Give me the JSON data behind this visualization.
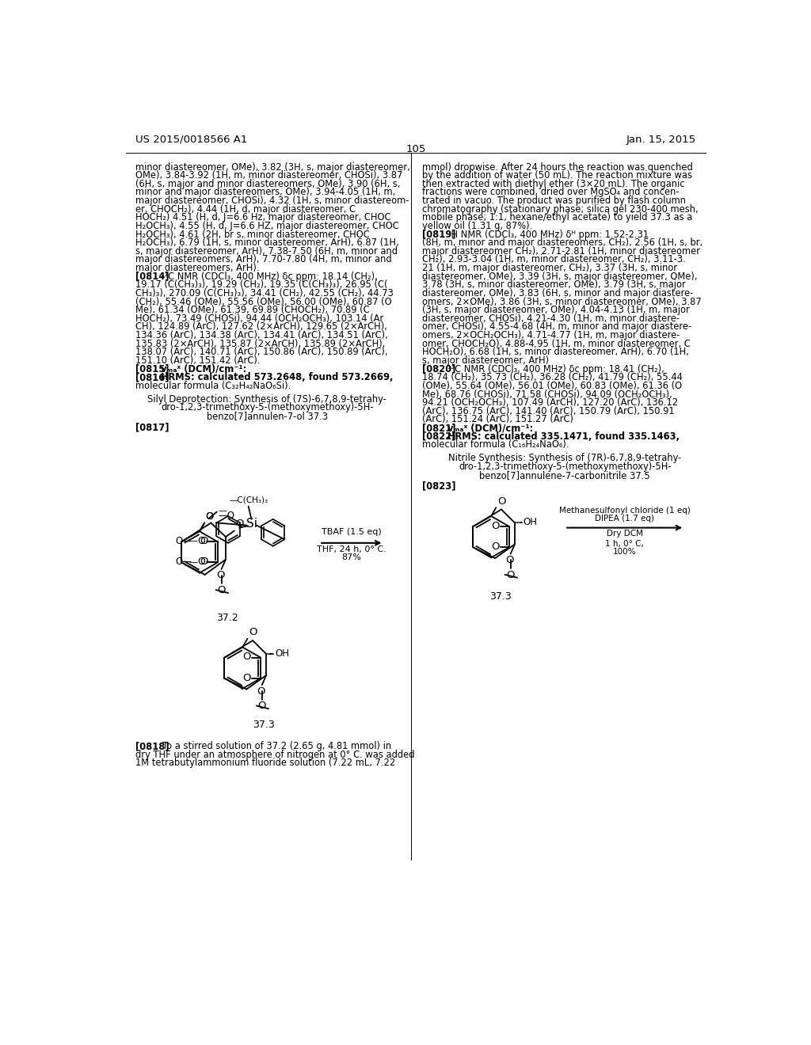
{
  "page_header_left": "US 2015/0018566 A1",
  "page_header_right": "Jan. 15, 2015",
  "page_number": "105",
  "bg": "#ffffff",
  "left_lines": [
    [
      false,
      "minor diastereomer, OMe), 3.82 (3H, s, major diastereomer,"
    ],
    [
      false,
      "OMe), 3.84-3.92 (1H, m, minor diastereomer, CHOSi), 3.87"
    ],
    [
      false,
      "(6H, s, major and minor diastereomers, OMe), 3.90 (6H, s,"
    ],
    [
      false,
      "minor and major diastereomers, OMe), 3.94-4.05 (1H, m,"
    ],
    [
      false,
      "major diastereomer, CHOSi), 4.32 (1H, s, minor diastereom-"
    ],
    [
      false,
      "er, CHOCH₂), 4.44 (1H, d, major diastereomer, C"
    ],
    [
      false,
      "HOCH₂) 4.51 (H, d, J=6.6 Hz, major diastereomer, CHOC"
    ],
    [
      false,
      "H₂OCH₃), 4.55 (H, d, J=6.6 HZ, major diastereomer, CHOC"
    ],
    [
      false,
      "H₂OCH₃), 4.61 (2H, br s, minor diastereomer, CHOC"
    ],
    [
      false,
      "H₂OCH₃), 6.79 (1H, s, minor diastereomer, ArH), 6.87 (1H,"
    ],
    [
      false,
      "s, major diastereomer, ArH), 7.38-7.50 (6H, m, minor and"
    ],
    [
      false,
      "major diastereomers, ArH), 7.70-7.80 (4H, m, minor and"
    ],
    [
      false,
      "major diastereomers, ArH)."
    ],
    [
      "0814",
      "¹³C NMR (CDCl₃, 400 MHz) δᴄ ppm: 18.14 (CH₂),"
    ],
    [
      false,
      "19.17 (C(CH₃)₃), 19.29 (CH₂), 19.35 (C(CH₃)₃), 26.95 (C("
    ],
    [
      false,
      "CH₃)₃), 270.09 (C(CH₃)₃), 34.41 (CH₂), 42.55 (CH₂), 44.73"
    ],
    [
      false,
      "(CH₂), 55.46 (OMe), 55.56 (OMe), 56.00 (OMe), 60.87 (O"
    ],
    [
      false,
      "Me), 61.34 (OMe), 61.39, 69.89 (CHOCH₂), 70.89 (C"
    ],
    [
      false,
      "HOCH₂), 73.49 (CHOSi), 94.44 (OCH₂OCH₃), 103.14 (Ar"
    ],
    [
      false,
      "CH), 124.89 (ArC), 127.62 (2×ArCH), 129.65 (2×ArCH),"
    ],
    [
      false,
      "134.36 (ArC), 134.38 (ArC), 134.41 (ArC), 134.51 (ArC),"
    ],
    [
      false,
      "135.83 (2×ArCH), 135.87 (2×ArCH), 135.89 (2×ArCH),"
    ],
    [
      false,
      "138.07 (ArC), 140.71 (ArC), 150.86 (ArC), 150.89 (ArC),"
    ],
    [
      false,
      "151.10 (ArC), 151.42 (ArC)."
    ],
    [
      "0815",
      "vₘₐˣ (DCM)/cm⁻¹:"
    ],
    [
      "0816",
      "HRMS: calculated 573.2648, found 573.2669,"
    ],
    [
      false,
      "molecular formula (C₃₂H₄₂NaO₆Si)."
    ]
  ],
  "right_lines": [
    [
      false,
      "mmol) dropwise. After 24 hours the reaction was quenched"
    ],
    [
      false,
      "by the addition of water (50 mL). The reaction mixture was"
    ],
    [
      false,
      "then extracted with diethyl ether (3×20 mL). The organic"
    ],
    [
      false,
      "fractions were combined, dried over MgSO₄ and concen-"
    ],
    [
      false,
      "trated in vacuo. The product was purified by flash column"
    ],
    [
      false,
      "chromatography (stationary phase; silica gel 230-400 mesh,"
    ],
    [
      false,
      "mobile phase; 1:1, hexane/ethyl acetate) to yield 37.3 as a"
    ],
    [
      false,
      "yellow oil (1.31 g, 87%)."
    ],
    [
      "0819",
      "¹H NMR (CDCl₃, 400 MHz) δᴴ ppm: 1.52-2.31"
    ],
    [
      false,
      "(8H, m, minor and major diastereomers, CH₂), 2.56 (1H, s, br,"
    ],
    [
      false,
      "major diastereomer CH₂), 2.71-2.81 (1H, minor diastereomer"
    ],
    [
      false,
      "CH₂), 2.93-3.04 (1H, m, minor diastereomer, CH₂), 3.11-3."
    ],
    [
      false,
      "21 (1H, m, major diastereomer, CH₂), 3.37 (3H, s, minor"
    ],
    [
      false,
      "diastereomer, OMe), 3.39 (3H, s, major diastereomer, OMe),"
    ],
    [
      false,
      "3.78 (3H, s, minor diastereomer, OMe), 3.79 (3H, s, major"
    ],
    [
      false,
      "diastereomer, OMe), 3.83 (6H, s, minor and major diastere-"
    ],
    [
      false,
      "omers, 2×OMe), 3.86 (3H, s, minor diastereomer, OMe), 3.87"
    ],
    [
      false,
      "(3H, s, major diastereomer, OMe), 4.04-4.13 (1H, m, major"
    ],
    [
      false,
      "diastereomer, CHOSi), 4.21-4.30 (1H, m, minor diastere-"
    ],
    [
      false,
      "omer, CHOSi), 4.55-4.68 (4H, m, minor and major diastere-"
    ],
    [
      false,
      "omers, 2×OCH₂OCH₃), 4.71-4.77 (1H, m, major diastere-"
    ],
    [
      false,
      "omer, CHOCH₂O), 4.88-4.95 (1H, m, minor diastereomer, C"
    ],
    [
      false,
      "HOCH₂O), 6.68 (1H, s, minor diastereomer, ArH), 6.70 (1H,"
    ],
    [
      false,
      "s, major diastereomer, ArH)"
    ],
    [
      "0820",
      "¹³C NMR (CDCl₃, 400 MHz) δᴄ ppm: 18.41 (CH₂),"
    ],
    [
      false,
      "18.74 (CH₂), 35.73 (CH₂), 36.28 (CH₂), 41.79 (CH₂), 55.44"
    ],
    [
      false,
      "(OMe), 55.64 (OMe), 56.01 (OMe), 60.83 (OMe), 61.36 (O"
    ],
    [
      false,
      "Me), 68.76 (CHOSi), 71.58 (CHOSi), 94.09 (OCH₂OCH₃),"
    ],
    [
      false,
      "94.21 (OCH₂OCH₃), 107.49 (ArCH), 127.20 (ArC), 136.12"
    ],
    [
      false,
      "(ArC), 136.75 (ArC), 141.40 (ArC), 150.79 (ArC), 150.91"
    ],
    [
      false,
      "(ArC), 151.24 (ArC), 151.27 (ArC)"
    ],
    [
      "0821",
      "vₘₐˣ (DCM)/cm⁻¹:"
    ],
    [
      "0822",
      "HRMS: calculated 335.1471, found 335.1463,"
    ],
    [
      false,
      "molecular formula (C₁₆H₂₄NaO₆)."
    ]
  ],
  "title1_lines": [
    "Silyl Deprotection: Synthesis of (7S)-6,7,8,9-tetrahy-",
    "dro-1,2,3-trimethoxy-5-(methoxymethoxy)-5H-",
    "benzo[7]annulen-7-ol 37.3"
  ],
  "title2_lines": [
    "Nitrile Synthesis: Synthesis of (7R)-6,7,8,9-tetrahy-",
    "dro-1,2,3-trimethoxy-5-(methoxymethoxy)-5H-",
    "benzo[7]annulene-7-carbonitrile 37.5"
  ],
  "bottom_lines": [
    [
      "0818",
      "To a stirred solution of 37.2 (2.65 g, 4.81 mmol) in"
    ],
    [
      false,
      "dry THF under an atmosphere of nitrogen at 0° C. was added"
    ],
    [
      false,
      "1M tetrabutylammonium fluoride solution (7.22 mL, 7.22"
    ]
  ]
}
